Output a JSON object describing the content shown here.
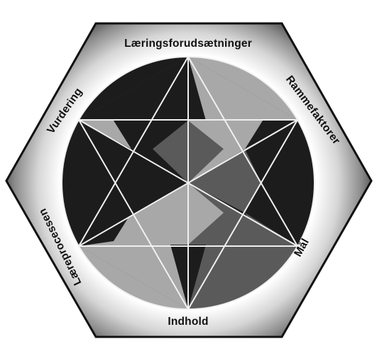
{
  "labels": {
    "top": "Læringsforudsætninger",
    "upper_right": "Rammefaktorer",
    "lower_right": "Mål",
    "bottom": "Indhold",
    "lower_left": "Læreprocessen",
    "upper_left": "Vurdering"
  },
  "colors": {
    "dark": "#1c1c1c",
    "mid": "#5a5a5a",
    "light": "#a8a8a8",
    "lines": "#f0f0f0",
    "hexagon_edge": "#111111"
  }
}
